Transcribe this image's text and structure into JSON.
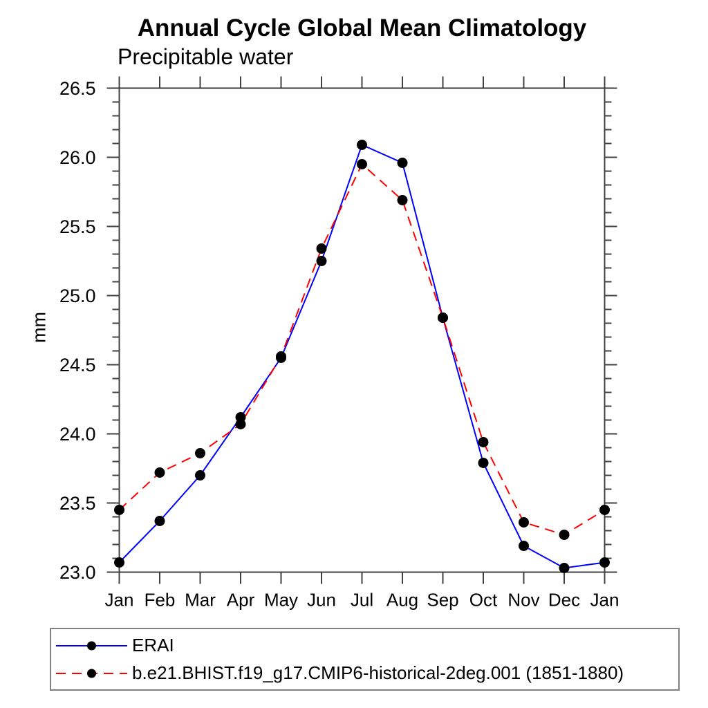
{
  "chart_data": {
    "type": "line",
    "title": "Annual Cycle Global Mean Climatology",
    "subtitle": "Precipitable water",
    "ylabel": "mm",
    "xlabel": "",
    "x_categories": [
      "Jan",
      "Feb",
      "Mar",
      "Apr",
      "May",
      "Jun",
      "Jul",
      "Aug",
      "Sep",
      "Oct",
      "Nov",
      "Dec",
      "Jan"
    ],
    "ylim": [
      23.0,
      26.5
    ],
    "ytick_major": 0.5,
    "ytick_minor": 0.1,
    "grid": false,
    "axis_color": "#404040",
    "legend_position": "bottom-left-box",
    "series": [
      {
        "name": "ERAI",
        "color": "#0000ff",
        "line_style": "solid",
        "marker": "filled-circle",
        "marker_color": "#000000",
        "values": [
          23.07,
          23.37,
          23.7,
          24.12,
          24.55,
          25.25,
          26.09,
          25.96,
          24.84,
          23.79,
          23.19,
          23.03,
          23.07
        ]
      },
      {
        "name": "b.e21.BHIST.f19_g17.CMIP6-historical-2deg.001 (1851-1880)",
        "color": "#ff0000",
        "line_style": "dashed",
        "marker": "filled-circle",
        "marker_color": "#000000",
        "values": [
          23.45,
          23.72,
          23.86,
          24.07,
          24.56,
          25.34,
          25.95,
          25.69,
          24.84,
          23.94,
          23.36,
          23.27,
          23.45
        ]
      }
    ]
  }
}
